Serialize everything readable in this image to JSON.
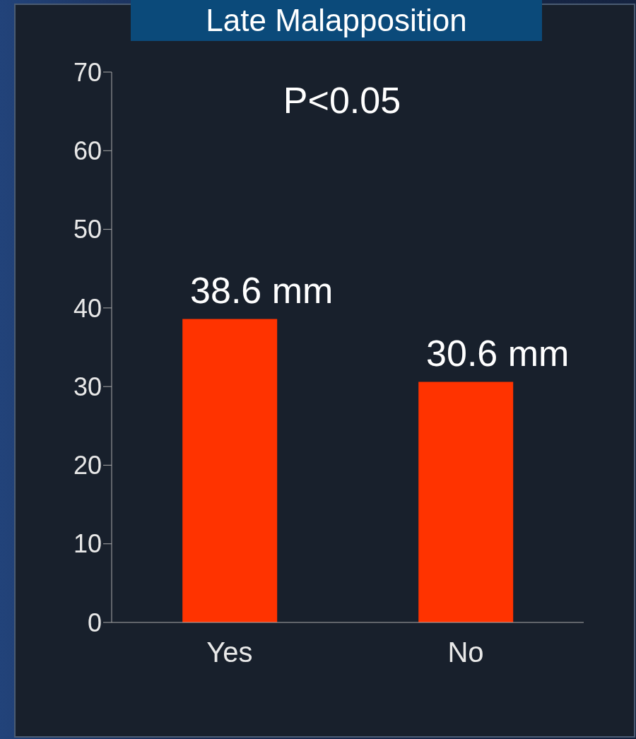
{
  "chart_data": {
    "type": "bar",
    "title": "Late Malapposition",
    "categories": [
      "Yes",
      "No"
    ],
    "values": [
      38.6,
      30.6
    ],
    "color": "#ff3300",
    "value_labels": [
      "38.6 mm",
      "30.6 mm"
    ],
    "ylim": [
      0,
      70
    ],
    "yticks": [
      0,
      10,
      20,
      30,
      40,
      50,
      60,
      70
    ],
    "grid": false,
    "annotations": [
      "P<0.05"
    ]
  }
}
